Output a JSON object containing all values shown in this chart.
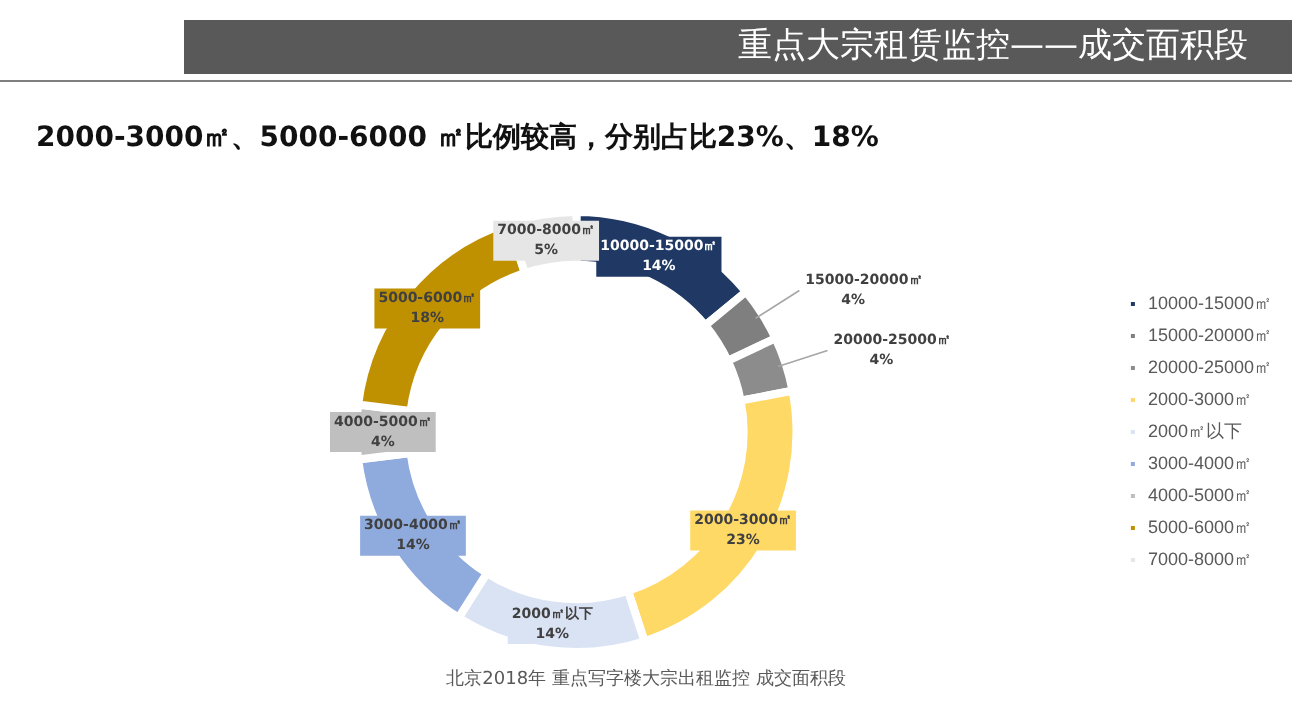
{
  "chart_data": {
    "type": "donut",
    "title": "重点大宗租赁监控——成交面积段",
    "subtitle": "2000-3000㎡、5000-6000 ㎡比例较高，分别占比23%、18%",
    "categories": [
      "10000-15000㎡",
      "15000-20000㎡",
      "20000-25000㎡",
      "2000-3000㎡",
      "2000㎡以下",
      "3000-4000㎡",
      "4000-5000㎡",
      "5000-6000㎡",
      "7000-8000㎡"
    ],
    "values": [
      14,
      4,
      4,
      23,
      14,
      14,
      4,
      18,
      5
    ],
    "colors": [
      "#203864",
      "#7f7f7f",
      "#8c8c8c",
      "#ffd966",
      "#dae3f3",
      "#8faadc",
      "#bfbfbf",
      "#bf9000",
      "#e7e6e6"
    ],
    "value_labels": [
      "14%",
      "4%",
      "4%",
      "23%",
      "14%",
      "14%",
      "4%",
      "18%",
      "5%"
    ],
    "legend": "right",
    "annotations": [
      "北京2018年 重点写字楼大宗出租监控 成交面积段"
    ]
  }
}
